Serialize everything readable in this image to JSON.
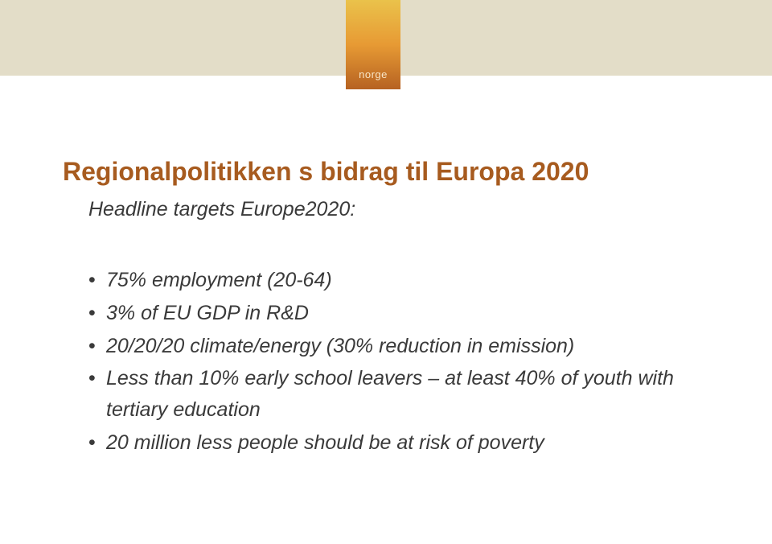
{
  "logo": {
    "text": "norge"
  },
  "slide": {
    "title": "Regionalpolitikken s bidrag til Europa 2020",
    "subtitle": "Headline targets Europe2020:",
    "bullets": [
      "75% employment (20-64)",
      "3% of EU GDP in R&D",
      "20/20/20 climate/energy (30% reduction in emission)",
      "Less than 10% early school leavers – at least 40% of youth with tertiary education",
      "20 million less people should be at risk of poverty"
    ]
  }
}
